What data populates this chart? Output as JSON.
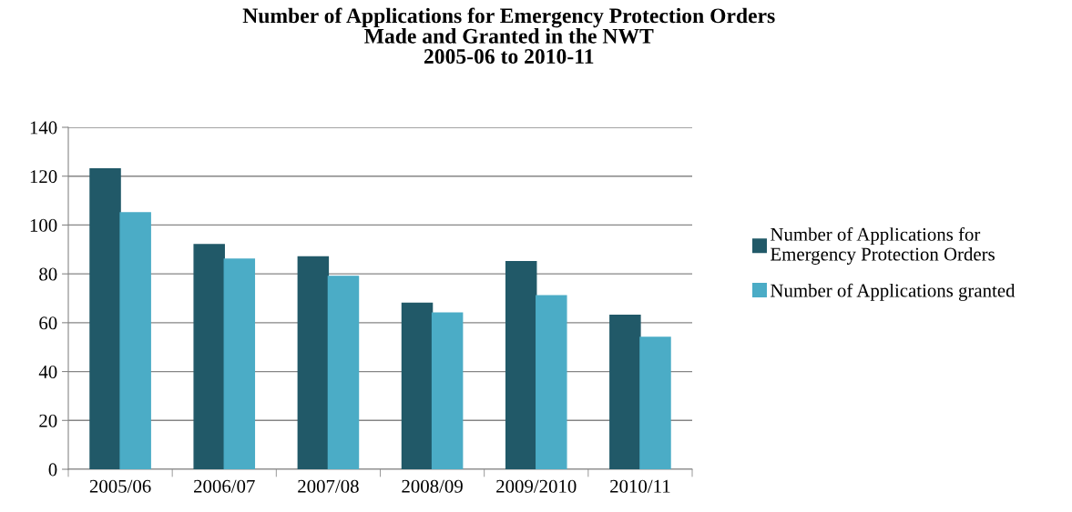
{
  "chart_data": {
    "type": "bar",
    "title": "Number of Applications for Emergency Protection Orders\nMade and Granted in the NWT\n2005-06 to 2010-11",
    "categories": [
      "2005/06",
      "2006/07",
      "2007/08",
      "2008/09",
      "2009/2010",
      "2010/11"
    ],
    "series": [
      {
        "name": "Number of Applications for\nEmergency Protection Orders",
        "color": "#215968",
        "values": [
          123,
          92,
          87,
          68,
          85,
          63
        ]
      },
      {
        "name": "Number of Applications granted",
        "color": "#4bacc6",
        "values": [
          105,
          86,
          79,
          64,
          71,
          54
        ]
      }
    ],
    "ylim": [
      0,
      140
    ],
    "yticks": [
      0,
      20,
      40,
      60,
      80,
      100,
      120,
      140
    ],
    "grid": "y",
    "legend": "right"
  }
}
